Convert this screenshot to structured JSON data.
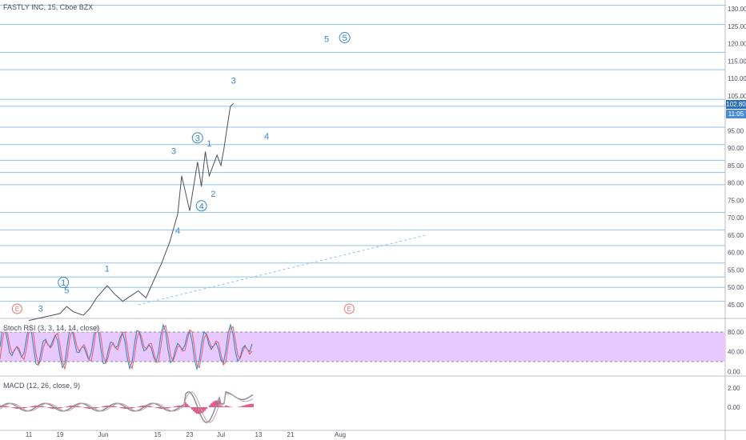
{
  "header": {
    "title": "FASTLY INC, 15, Cboe BZX"
  },
  "indicators": {
    "stoch_label": "Stoch RSI (3, 3, 14, 14, close)",
    "macd_label": "MACD (12, 26, close, 9)"
  },
  "price_badges": {
    "last": "102.80",
    "countdown": "11:05"
  },
  "chart_data": {
    "type": "line",
    "title": "FASTLY INC, 15, Cboe BZX",
    "price_axis_ticks": [
      "130.00",
      "125.00",
      "120.00",
      "115.00",
      "110.00",
      "105.00",
      "100.00",
      "95.00",
      "90.00",
      "85.00",
      "80.00",
      "75.00",
      "70.00",
      "65.00",
      "60.00",
      "55.00",
      "50.00",
      "45.00"
    ],
    "stoch_axis_ticks": [
      "80.00",
      "40.00",
      "0.00"
    ],
    "macd_axis_ticks": [
      "2.00",
      "0.00"
    ],
    "x_tick_labels": [
      "11",
      "19",
      "Jun",
      "15",
      "23",
      "Jul",
      "13",
      "21",
      "Aug"
    ],
    "price_path": [
      {
        "d": "May 11",
        "v": 40.5
      },
      {
        "d": "May 15",
        "v": 41.5
      },
      {
        "d": "May 19",
        "v": 42.5
      },
      {
        "d": "May 21",
        "v": 44.5
      },
      {
        "d": "May 23",
        "v": 43.0
      },
      {
        "d": "May 26",
        "v": 42.0
      },
      {
        "d": "May 28",
        "v": 44.0
      },
      {
        "d": "May 30",
        "v": 47.0
      },
      {
        "d": "Jun 2",
        "v": 50.5
      },
      {
        "d": "Jun 4",
        "v": 48.0
      },
      {
        "d": "Jun 6",
        "v": 46.0
      },
      {
        "d": "Jun 8",
        "v": 47.5
      },
      {
        "d": "Jun 10",
        "v": 49.0
      },
      {
        "d": "Jun 12",
        "v": 47.0
      },
      {
        "d": "Jun 14",
        "v": 52.0
      },
      {
        "d": "Jun 16",
        "v": 57.0
      },
      {
        "d": "Jun 18",
        "v": 63.0
      },
      {
        "d": "Jun 20",
        "v": 71.0
      },
      {
        "d": "Jun 21",
        "v": 82.0
      },
      {
        "d": "Jun 22",
        "v": 77.0
      },
      {
        "d": "Jun 23",
        "v": 72.0
      },
      {
        "d": "Jun 25",
        "v": 86.0
      },
      {
        "d": "Jun 26",
        "v": 79.0
      },
      {
        "d": "Jun 27",
        "v": 89.0
      },
      {
        "d": "Jun 28",
        "v": 82.0
      },
      {
        "d": "Jun 30",
        "v": 88.0
      },
      {
        "d": "Jul 1",
        "v": 85.0
      },
      {
        "d": "Jul 2",
        "v": 90.0
      },
      {
        "d": "Jul 3",
        "v": 96.0
      },
      {
        "d": "Jul 4",
        "v": 102.0
      },
      {
        "d": "Jul 5",
        "v": 102.8
      }
    ],
    "horizontal_levels": [
      131,
      125.5,
      117.5,
      112.5,
      104,
      102,
      96,
      91,
      86.5,
      83,
      79.5,
      71.5,
      66.5,
      62,
      57,
      53,
      50,
      46
    ],
    "trendline": {
      "start": {
        "d": "Jun 10",
        "v": 45.0
      },
      "end": {
        "d": "Aug 20",
        "v": 65.0
      }
    },
    "wave_labels": [
      {
        "text": "3",
        "d": "May 14",
        "v": 43.0
      },
      {
        "text": "5",
        "d": "May 21",
        "v": 48.3
      },
      {
        "text": "1",
        "d": "Jun 2",
        "v": 54.5
      },
      {
        "text": "4",
        "d": "Jun 20",
        "v": 65.5
      },
      {
        "text": "3",
        "d": "Jun 19",
        "v": 88.3
      },
      {
        "text": "2",
        "d": "Jun 29",
        "v": 76.0
      },
      {
        "text": "1",
        "d": "Jun 28",
        "v": 90.5
      },
      {
        "text": "3",
        "d": "Jul 5",
        "v": 108.5
      },
      {
        "text": "4",
        "d": "Jul 15",
        "v": 92.5
      },
      {
        "text": "5",
        "d": "Jul 29",
        "v": 120.5
      }
    ],
    "circled_wave_labels": [
      {
        "text": "1",
        "d": "May 20",
        "v": 50.5
      },
      {
        "text": "3",
        "d": "Jun 25",
        "v": 92.0
      },
      {
        "text": "4",
        "d": "Jun 26",
        "v": 72.5
      },
      {
        "text": "5",
        "d": "Aug 2",
        "v": 120.8
      }
    ],
    "earnings_markers": [
      {
        "text": "E",
        "d": "May 8"
      },
      {
        "text": "E",
        "d": "Aug 3"
      }
    ],
    "stoch_band": {
      "upper": 80,
      "lower": 20
    },
    "colors": {
      "levels": "#8fc3e6",
      "waves": "#3a86c8",
      "stoch_band": "#e7c8ff",
      "macd_hist": "#e0245e",
      "price_badge": "#2a6fb5",
      "countdown_badge": "#4a8ccf",
      "earnings": "#e57373"
    }
  }
}
